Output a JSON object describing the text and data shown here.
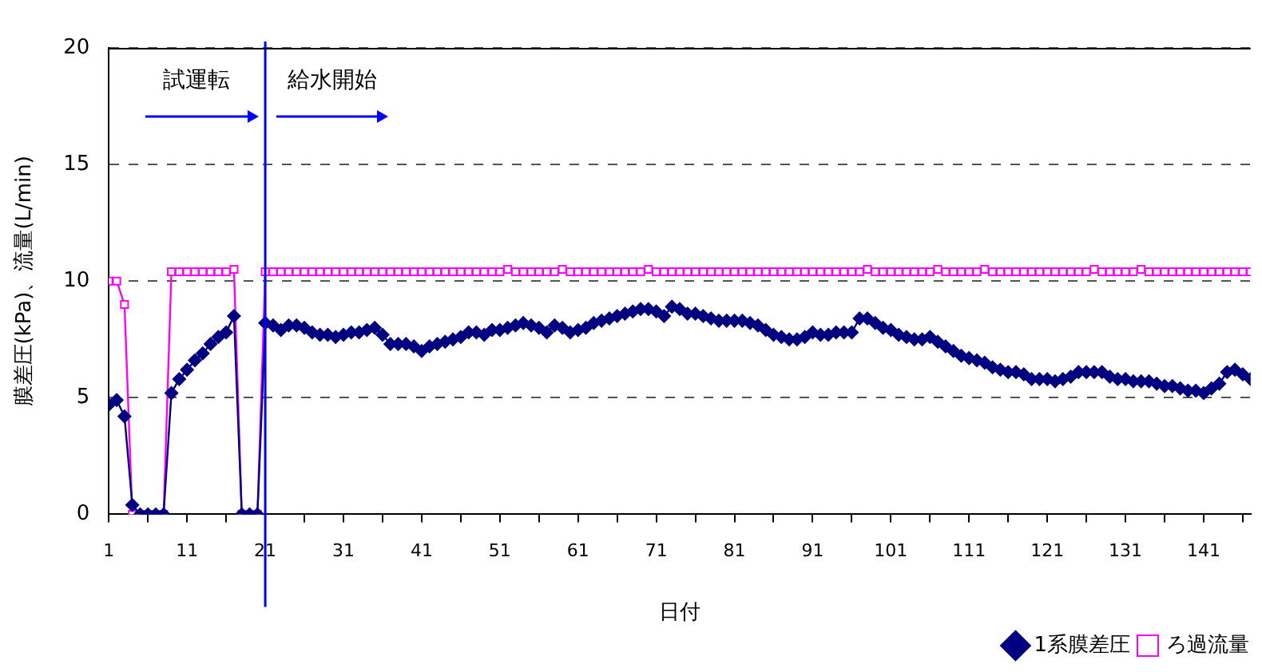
{
  "chart_data": {
    "type": "line",
    "xlabel": "日付",
    "ylabel": "膜差圧(kPa)、流量(L/min)",
    "x": [
      1,
      2,
      3,
      4,
      5,
      6,
      7,
      8,
      9,
      10,
      11,
      12,
      13,
      14,
      15,
      16,
      17,
      18,
      19,
      20,
      21,
      22,
      23,
      24,
      25,
      26,
      27,
      28,
      29,
      30,
      31,
      32,
      33,
      34,
      35,
      36,
      37,
      38,
      39,
      40,
      41,
      42,
      43,
      44,
      45,
      46,
      47,
      48,
      49,
      50,
      51,
      52,
      53,
      54,
      55,
      56,
      57,
      58,
      59,
      60,
      61,
      62,
      63,
      64,
      65,
      66,
      67,
      68,
      69,
      70,
      71,
      72,
      73,
      74,
      75,
      76,
      77,
      78,
      79,
      80,
      81,
      82,
      83,
      84,
      85,
      86,
      87,
      88,
      89,
      90,
      91,
      92,
      93,
      94,
      95,
      96,
      97,
      98,
      99,
      100,
      101,
      102,
      103,
      104,
      105,
      106,
      107,
      108,
      109,
      110,
      111,
      112,
      113,
      114,
      115,
      116,
      117,
      118,
      119,
      120,
      121,
      122,
      123,
      124,
      125,
      126,
      127,
      128,
      129,
      130,
      131,
      132,
      133,
      134,
      135,
      136,
      137,
      138,
      139,
      140,
      141,
      142,
      143,
      144,
      145,
      146,
      147
    ],
    "series": [
      {
        "name": "1系膜差圧",
        "color": "#000080",
        "marker": "diamond",
        "values": [
          4.7,
          4.9,
          4.2,
          0.4,
          0,
          0,
          0,
          0,
          5.2,
          5.8,
          6.2,
          6.6,
          6.9,
          7.3,
          7.6,
          7.8,
          8.5,
          0,
          0,
          0,
          8.2,
          8.1,
          7.9,
          8.1,
          8.1,
          8.0,
          7.8,
          7.7,
          7.7,
          7.6,
          7.7,
          7.8,
          7.8,
          7.9,
          8.0,
          7.7,
          7.3,
          7.3,
          7.3,
          7.2,
          7.0,
          7.2,
          7.3,
          7.4,
          7.5,
          7.6,
          7.8,
          7.8,
          7.7,
          7.9,
          7.9,
          8.0,
          8.1,
          8.2,
          8.1,
          8.0,
          7.8,
          8.1,
          8.0,
          7.8,
          7.9,
          8.0,
          8.2,
          8.3,
          8.4,
          8.5,
          8.6,
          8.7,
          8.8,
          8.8,
          8.7,
          8.5,
          8.9,
          8.8,
          8.6,
          8.6,
          8.5,
          8.4,
          8.3,
          8.3,
          8.3,
          8.3,
          8.2,
          8.1,
          7.9,
          7.7,
          7.6,
          7.5,
          7.5,
          7.6,
          7.8,
          7.7,
          7.7,
          7.8,
          7.8,
          7.8,
          8.4,
          8.4,
          8.2,
          8.0,
          7.9,
          7.7,
          7.6,
          7.5,
          7.5,
          7.6,
          7.4,
          7.2,
          7.0,
          6.8,
          6.7,
          6.6,
          6.5,
          6.3,
          6.2,
          6.1,
          6.1,
          6.0,
          5.8,
          5.8,
          5.8,
          5.7,
          5.8,
          5.9,
          6.1,
          6.1,
          6.1,
          6.1,
          5.9,
          5.8,
          5.8,
          5.7,
          5.7,
          5.7,
          5.6,
          5.5,
          5.5,
          5.4,
          5.3,
          5.3,
          5.2,
          5.4,
          5.6,
          6.1,
          6.2,
          6.0,
          5.8
        ]
      },
      {
        "name": "ろ過流量",
        "color": "#ff00ff",
        "marker": "square",
        "values": [
          10,
          10,
          9,
          0,
          0,
          0,
          0,
          0,
          10.4,
          10.4,
          10.4,
          10.4,
          10.4,
          10.4,
          10.4,
          10.4,
          10.5,
          0,
          0,
          0,
          10.4,
          10.4,
          10.4,
          10.4,
          10.4,
          10.4,
          10.4,
          10.4,
          10.4,
          10.4,
          10.4,
          10.4,
          10.4,
          10.4,
          10.4,
          10.4,
          10.4,
          10.4,
          10.4,
          10.4,
          10.4,
          10.4,
          10.4,
          10.4,
          10.4,
          10.4,
          10.4,
          10.4,
          10.4,
          10.4,
          10.4,
          10.5,
          10.4,
          10.4,
          10.4,
          10.4,
          10.4,
          10.4,
          10.5,
          10.4,
          10.4,
          10.4,
          10.4,
          10.4,
          10.4,
          10.4,
          10.4,
          10.4,
          10.4,
          10.5,
          10.4,
          10.4,
          10.4,
          10.4,
          10.4,
          10.4,
          10.4,
          10.4,
          10.4,
          10.4,
          10.4,
          10.4,
          10.4,
          10.4,
          10.4,
          10.4,
          10.4,
          10.4,
          10.4,
          10.4,
          10.4,
          10.4,
          10.4,
          10.4,
          10.4,
          10.4,
          10.4,
          10.5,
          10.4,
          10.4,
          10.4,
          10.4,
          10.4,
          10.4,
          10.4,
          10.4,
          10.5,
          10.4,
          10.4,
          10.4,
          10.4,
          10.4,
          10.5,
          10.4,
          10.4,
          10.4,
          10.4,
          10.4,
          10.4,
          10.4,
          10.4,
          10.4,
          10.4,
          10.4,
          10.4,
          10.4,
          10.5,
          10.4,
          10.4,
          10.4,
          10.4,
          10.4,
          10.5,
          10.4,
          10.4,
          10.4,
          10.4,
          10.4,
          10.4,
          10.4,
          10.4,
          10.4,
          10.4,
          10.4,
          10.4,
          10.4,
          10.4
        ]
      }
    ],
    "xlim": [
      1,
      147
    ],
    "xticks": [
      1,
      {
        "value": 6,
        "label": null
      },
      11,
      {
        "value": 16,
        "label": null
      },
      21,
      {
        "value": 26,
        "label": null
      },
      31,
      {
        "value": 36,
        "label": null
      },
      41,
      {
        "value": 46,
        "label": null
      },
      51,
      {
        "value": 56,
        "label": null
      },
      61,
      {
        "value": 66,
        "label": null
      },
      71,
      {
        "value": 76,
        "label": null
      },
      81,
      {
        "value": 86,
        "label": null
      },
      91,
      {
        "value": 96,
        "label": null
      },
      101,
      {
        "value": 106,
        "label": null
      },
      111,
      {
        "value": 116,
        "label": null
      },
      121,
      {
        "value": 126,
        "label": null
      },
      131,
      {
        "value": 136,
        "label": null
      },
      141,
      {
        "value": 146,
        "label": null
      }
    ],
    "ylim": [
      0,
      20
    ],
    "yticks": [
      0,
      5,
      10,
      15,
      20
    ],
    "grid": "y",
    "legend": "bottom right",
    "ref_lines": [
      {
        "axis": "x",
        "value": 21,
        "color": "#0000ff"
      }
    ],
    "annotations": [
      "試運転",
      "給水開始"
    ]
  }
}
